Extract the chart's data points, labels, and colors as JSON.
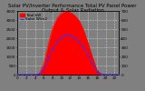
{
  "title": "Solar PV/Inverter Performance Total PV Panel Power Output & Solar Radiation",
  "hours": [
    0,
    1,
    2,
    3,
    4,
    5,
    6,
    7,
    8,
    9,
    10,
    11,
    12,
    13,
    14,
    15,
    16,
    17,
    18,
    19,
    20,
    21,
    22,
    23
  ],
  "pv_power": [
    0,
    0,
    0,
    0,
    0,
    0.02,
    0.18,
    0.48,
    0.74,
    0.89,
    0.97,
    1.0,
    0.98,
    0.93,
    0.85,
    0.7,
    0.5,
    0.28,
    0.08,
    0.01,
    0,
    0,
    0,
    0
  ],
  "solar_rad": [
    0,
    0,
    0,
    0,
    0,
    0.01,
    0.09,
    0.25,
    0.4,
    0.52,
    0.59,
    0.62,
    0.61,
    0.57,
    0.52,
    0.43,
    0.31,
    0.17,
    0.05,
    0.005,
    0,
    0,
    0,
    0
  ],
  "pv_color": "#ff0000",
  "rad_color": "#3333ff",
  "bg_color": "#808080",
  "plot_bg": "#808080",
  "grid_color": "#ffffff",
  "pv_max": 3500,
  "rad_max": 700,
  "legend_pv": "Total kW",
  "legend_rad": "Solar W/m2",
  "title_fontsize": 4.0,
  "tick_fontsize": 3.0,
  "right_ticks": [
    0,
    100,
    200,
    300,
    400,
    500,
    600,
    700
  ],
  "left_ticks": [
    0,
    500,
    1000,
    1500,
    2000,
    2500,
    3000,
    3500
  ]
}
